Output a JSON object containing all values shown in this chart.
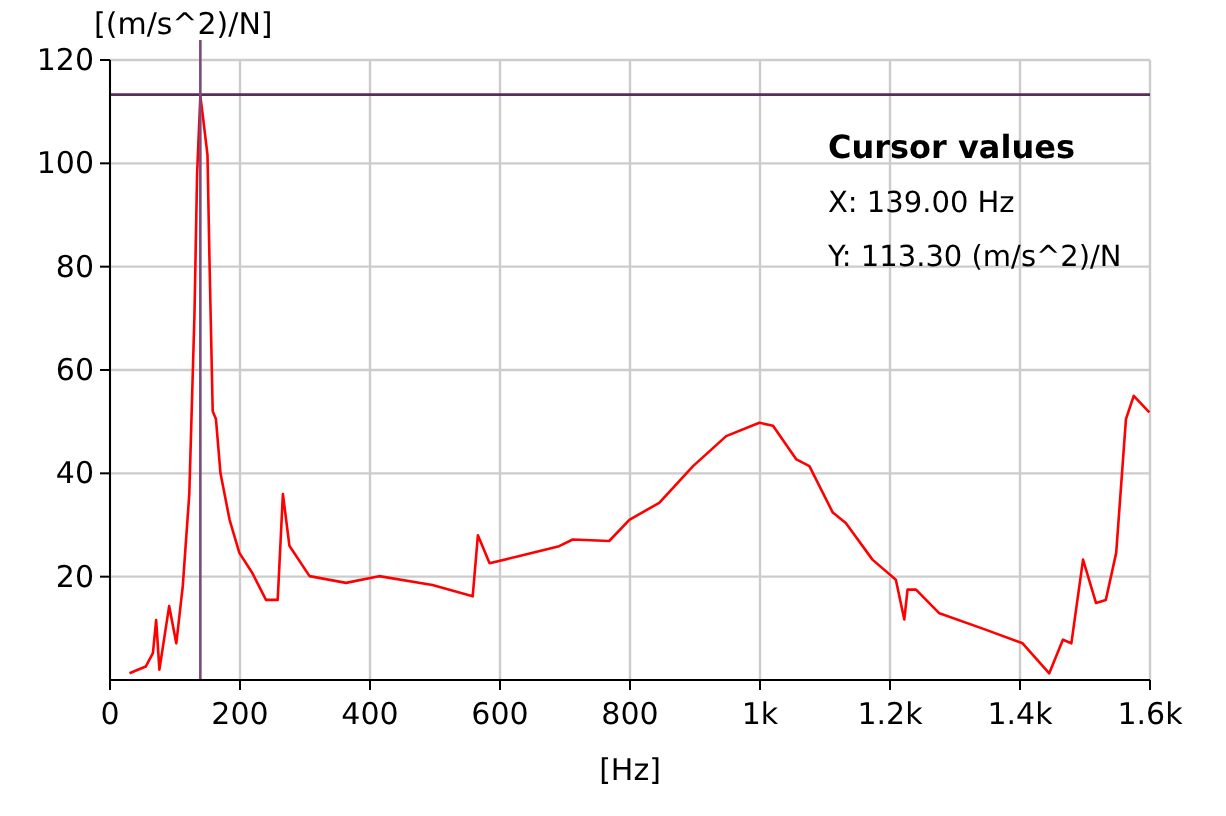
{
  "chart_data": {
    "type": "line",
    "xlabel": "[Hz]",
    "ylabel": "[(m/s^2)/N]",
    "xlim": [
      0,
      1600
    ],
    "xticks": [
      0,
      200,
      400,
      600,
      800,
      {
        "value": 1000,
        "label": "1k"
      },
      {
        "value": 1200,
        "label": "1.2k"
      },
      {
        "value": 1400,
        "label": "1.4k"
      },
      {
        "value": 1600,
        "label": "1.6k"
      }
    ],
    "ylim": [
      0,
      120
    ],
    "yticks": [
      20,
      40,
      60,
      80,
      100,
      120
    ],
    "grid": true,
    "marker": "none",
    "line_style": "solid",
    "series": [
      {
        "color": "#ff0000",
        "x": [
          30,
          55,
          66,
          71,
          76,
          91,
          102,
          112,
          122,
          130,
          134,
          139,
          143,
          150,
          153,
          158,
          163,
          170,
          184,
          199,
          219,
          240,
          258,
          266,
          276,
          307,
          363,
          414,
          496,
          558,
          566,
          584,
          630,
          691,
          712,
          768,
          799,
          845,
          897,
          948,
          999,
          1020,
          1056,
          1076,
          1112,
          1132,
          1173,
          1209,
          1222,
          1227,
          1240,
          1276,
          1348,
          1404,
          1445,
          1466,
          1479,
          1497,
          1517,
          1532,
          1548,
          1563,
          1575,
          1599
        ],
        "values": [
          1.3,
          2.6,
          5.2,
          11.6,
          2,
          14.3,
          7.1,
          18.2,
          36,
          71,
          98,
          113,
          109,
          101.6,
          81.6,
          52,
          50.5,
          40,
          31,
          24.6,
          20.7,
          15.5,
          15.5,
          36,
          26,
          20.1,
          18.8,
          20.1,
          18.4,
          16.2,
          28,
          22.6,
          24,
          25.9,
          27.2,
          26.9,
          31,
          34.3,
          41.4,
          47.2,
          49.8,
          49.2,
          42.7,
          41.4,
          32.4,
          30.4,
          23.3,
          19.4,
          11.7,
          17.5,
          17.5,
          12.9,
          9.7,
          7.1,
          1.3,
          7.8,
          7.1,
          23.3,
          14.9,
          15.5,
          24.6,
          50.5,
          55,
          51.8
        ]
      }
    ],
    "ref_lines": [
      {
        "axis": "y",
        "value": 113.3,
        "color": "#5b2c5b"
      },
      {
        "axis": "x",
        "value": 139,
        "color": "#7b4a7b"
      }
    ],
    "annotations": [
      "Cursor values",
      "X: 139.00 Hz",
      "Y: 113.30 (m/s^2)/N"
    ]
  }
}
